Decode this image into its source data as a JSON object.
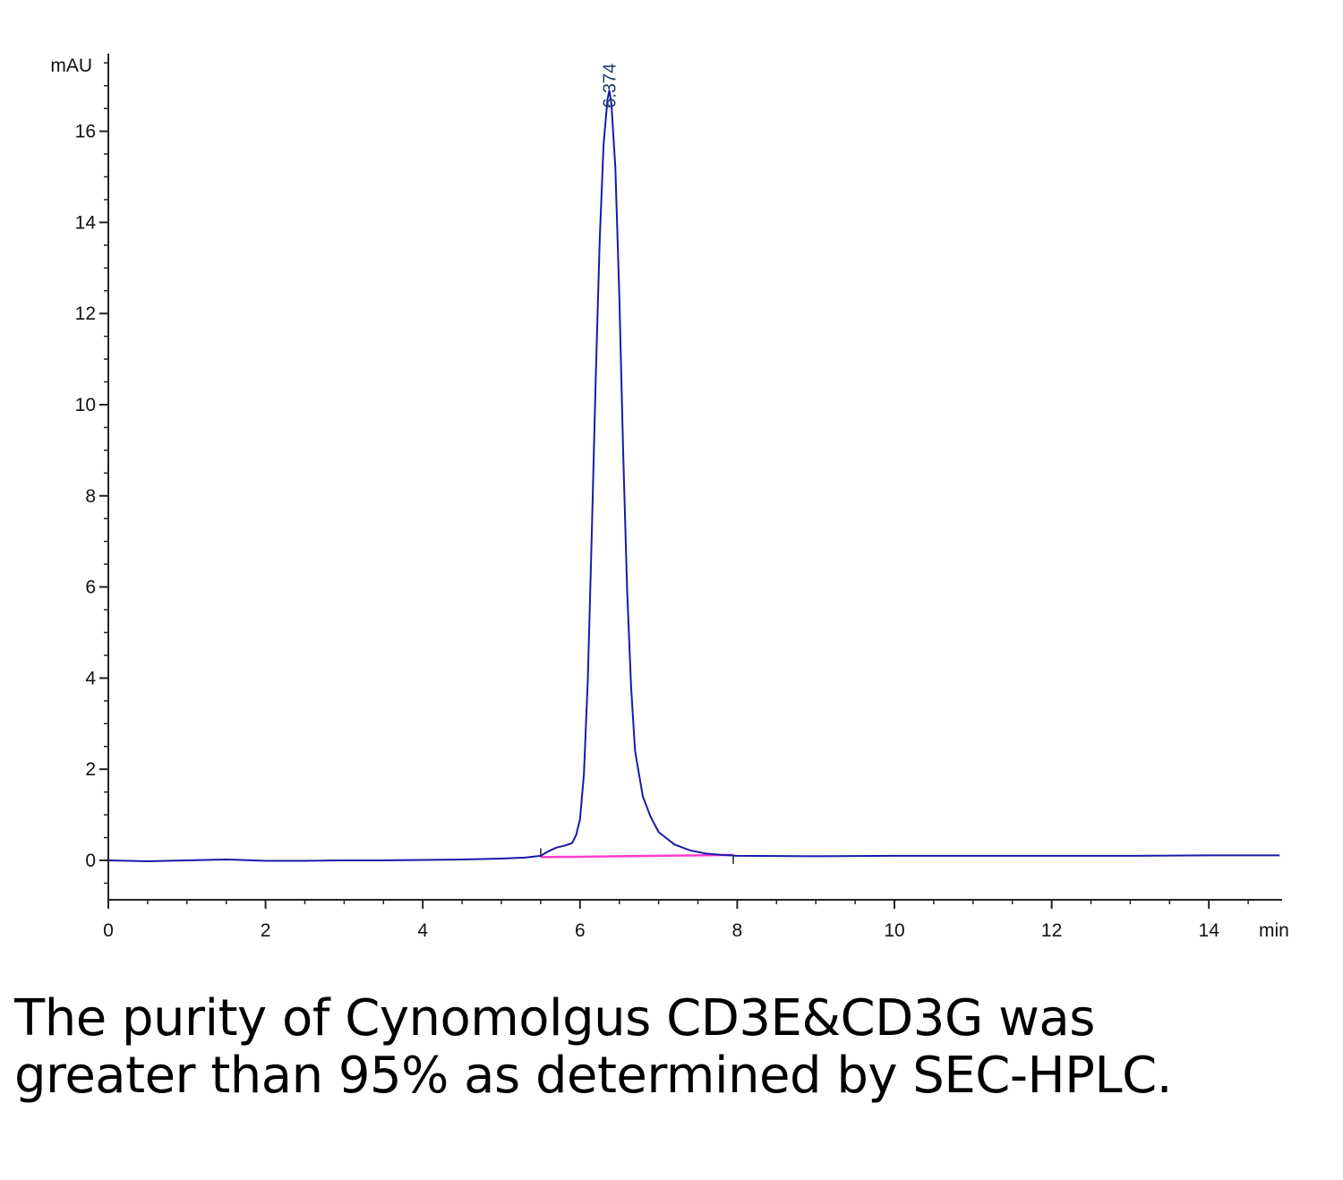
{
  "caption": "The purity of Cynomolgus CD3E&CD3G was greater than 95% as determined by SEC-HPLC.",
  "chart_data": {
    "type": "line",
    "ylabel": "mAU",
    "xlabel": "min",
    "xlim": [
      0,
      14.9
    ],
    "ylim": [
      -0.85,
      17.8
    ],
    "x_ticks": [
      0,
      2,
      4,
      6,
      8,
      10,
      12,
      14
    ],
    "y_ticks": [
      0,
      2,
      4,
      6,
      8,
      10,
      12,
      14,
      16
    ],
    "grid": false,
    "legend": "none",
    "colors": {
      "signal": "#1a1aa8",
      "baseline": "#ff3dcf",
      "axis": "#222222"
    },
    "peaks": [
      {
        "label": "6.374",
        "x": 6.374,
        "y": 16.9
      }
    ],
    "integration_baseline": {
      "x": [
        5.5,
        7.95
      ],
      "y": [
        0.07,
        0.12
      ]
    },
    "series": [
      {
        "x": [
          0,
          0.5,
          1.0,
          1.5,
          2.0,
          2.5,
          3.0,
          3.5,
          4.0,
          4.5,
          5.0,
          5.3,
          5.5,
          5.6,
          5.7,
          5.8,
          5.9,
          5.95,
          6.0,
          6.05,
          6.1,
          6.15,
          6.2,
          6.25,
          6.3,
          6.35,
          6.374,
          6.4,
          6.45,
          6.5,
          6.55,
          6.6,
          6.65,
          6.7,
          6.8,
          6.9,
          7.0,
          7.2,
          7.4,
          7.6,
          7.8,
          8.0,
          9.0,
          10.0,
          11.0,
          12.0,
          13.0,
          14.0,
          14.9
        ],
        "y": [
          0.0,
          -0.02,
          0.0,
          0.02,
          -0.01,
          -0.01,
          0.0,
          0.0,
          0.01,
          0.02,
          0.04,
          0.06,
          0.1,
          0.2,
          0.28,
          0.32,
          0.38,
          0.55,
          0.9,
          1.9,
          4.0,
          7.2,
          10.6,
          13.6,
          15.7,
          16.7,
          16.9,
          16.6,
          15.2,
          12.4,
          8.9,
          5.9,
          3.8,
          2.4,
          1.4,
          0.95,
          0.62,
          0.35,
          0.22,
          0.15,
          0.12,
          0.1,
          0.09,
          0.1,
          0.1,
          0.1,
          0.1,
          0.11,
          0.11
        ]
      }
    ]
  }
}
